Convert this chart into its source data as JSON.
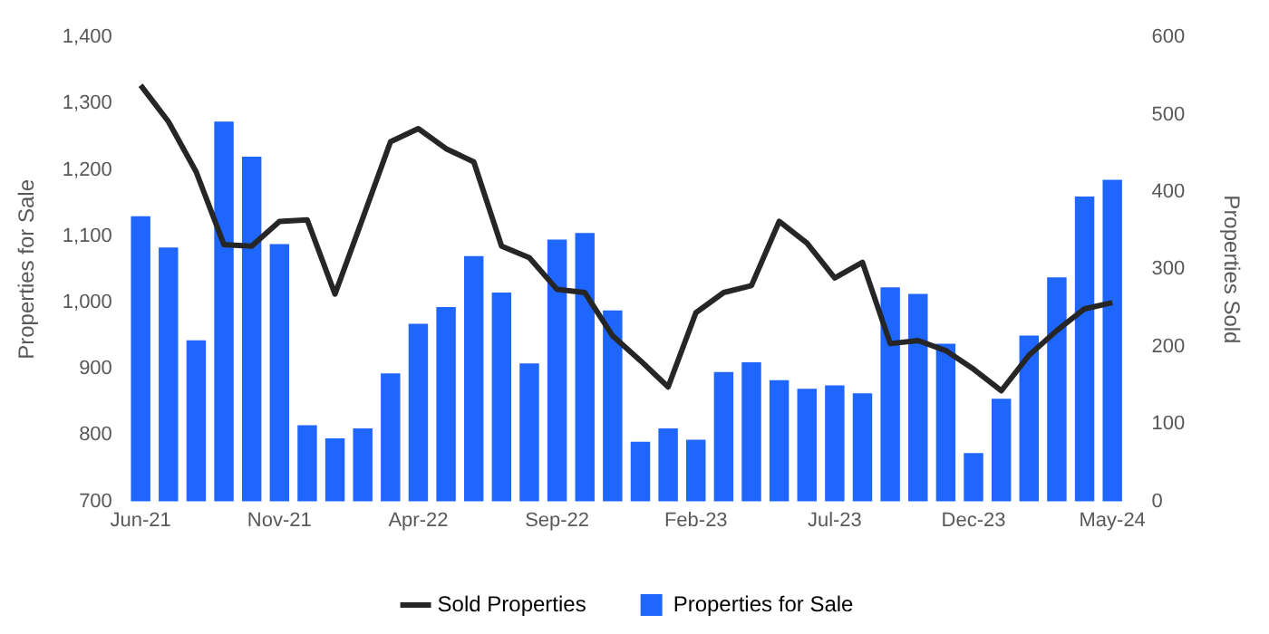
{
  "chart_data": {
    "type": "bar",
    "categories": [
      "Jun-21",
      null,
      null,
      null,
      null,
      "Nov-21",
      null,
      null,
      null,
      null,
      "Apr-22",
      null,
      null,
      null,
      null,
      "Sep-22",
      null,
      null,
      null,
      null,
      "Feb-23",
      null,
      null,
      null,
      null,
      "Jul-23",
      null,
      null,
      null,
      null,
      "Dec-23",
      null,
      null,
      null,
      null,
      "May-24"
    ],
    "series": [
      {
        "name": "Sold Properties",
        "type": "line",
        "axis": "y2",
        "color": "#262626",
        "values": [
          538,
          491,
          426,
          332,
          330,
          362,
          364,
          268,
          366,
          465,
          482,
          456,
          439,
          330,
          315,
          274,
          270,
          214,
          182,
          148,
          244,
          270,
          279,
          362,
          334,
          289,
          309,
          204,
          208,
          195,
          171,
          143,
          189,
          221,
          249,
          257
        ]
      },
      {
        "name": "Properties for Sale",
        "type": "bar",
        "color": "#1f66ff",
        "values": [
          1130,
          1083,
          943,
          1273,
          1220,
          1088,
          815,
          795,
          810,
          893,
          968,
          993,
          1070,
          1015,
          908,
          1095,
          1105,
          988,
          790,
          810,
          793,
          895,
          910,
          883,
          870,
          875,
          863,
          1023,
          1013,
          938,
          773,
          855,
          950,
          1038,
          1160,
          1185
        ]
      }
    ],
    "ylabel": "Properties for Sale",
    "y2label": "Properties Sold",
    "ylim": [
      700,
      1400
    ],
    "yticks": [
      700,
      800,
      900,
      {
        "value": 1000,
        "label": "1,000"
      },
      {
        "value": 1100,
        "label": "1,100"
      },
      {
        "value": 1200,
        "label": "1,200"
      },
      {
        "value": 1300,
        "label": "1,300"
      },
      {
        "value": 1400,
        "label": "1,400"
      }
    ],
    "y2lim": [
      0,
      600
    ],
    "y2ticks": [
      0,
      100,
      200,
      300,
      400,
      500,
      600
    ],
    "marker": "none",
    "legend": "bottom"
  }
}
